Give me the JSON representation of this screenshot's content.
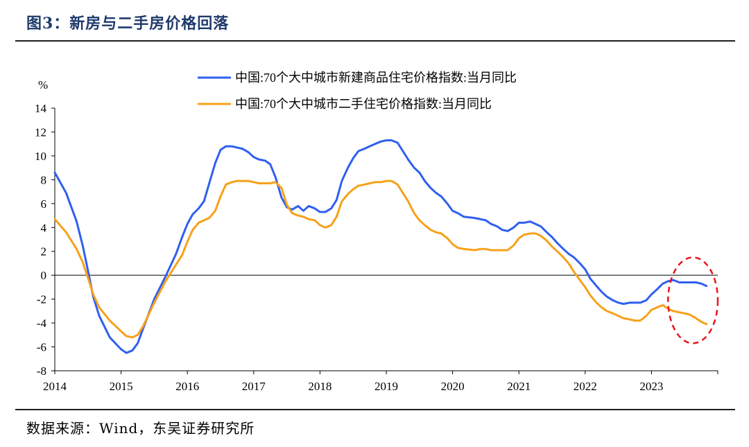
{
  "figure": {
    "title": "图3：新房与二手房价格回落",
    "source": "数据来源：Wind，东吴证券研究所"
  },
  "chart_data": {
    "type": "line",
    "ylabel": "%",
    "ylim": [
      -8,
      14
    ],
    "yticks": [
      14,
      12,
      10,
      8,
      6,
      4,
      2,
      0,
      -2,
      -4,
      -6,
      -8
    ],
    "xlim": [
      2014.0,
      2024.0
    ],
    "xticks": [
      "2014",
      "2015",
      "2016",
      "2017",
      "2018",
      "2019",
      "2020",
      "2021",
      "2022",
      "2023"
    ],
    "grid": false,
    "legend_position": "top-center",
    "highlight": {
      "shape": "dashed-ellipse",
      "color": "#e8141b",
      "x_range": [
        2023.25,
        2024.0
      ],
      "y_range": [
        -5.7,
        1.5
      ]
    },
    "series": [
      {
        "name": "中国:70个大中城市新建商品住宅价格指数:当月同比",
        "color": "#2f5ff0",
        "points": [
          [
            2014.0,
            8.6
          ],
          [
            2014.17,
            6.9
          ],
          [
            2014.33,
            4.5
          ],
          [
            2014.42,
            2.5
          ],
          [
            2014.5,
            0.4
          ],
          [
            2014.58,
            -1.8
          ],
          [
            2014.67,
            -3.4
          ],
          [
            2014.83,
            -5.2
          ],
          [
            2015.0,
            -6.2
          ],
          [
            2015.08,
            -6.5
          ],
          [
            2015.17,
            -6.3
          ],
          [
            2015.25,
            -5.7
          ],
          [
            2015.33,
            -4.5
          ],
          [
            2015.5,
            -2.0
          ],
          [
            2015.67,
            -0.1
          ],
          [
            2015.83,
            1.8
          ],
          [
            2015.92,
            3.2
          ],
          [
            2016.0,
            4.3
          ],
          [
            2016.08,
            5.1
          ],
          [
            2016.17,
            5.6
          ],
          [
            2016.25,
            6.2
          ],
          [
            2016.33,
            7.7
          ],
          [
            2016.42,
            9.4
          ],
          [
            2016.5,
            10.5
          ],
          [
            2016.58,
            10.8
          ],
          [
            2016.67,
            10.8
          ],
          [
            2016.75,
            10.7
          ],
          [
            2016.83,
            10.6
          ],
          [
            2016.92,
            10.3
          ],
          [
            2017.0,
            9.9
          ],
          [
            2017.08,
            9.7
          ],
          [
            2017.17,
            9.6
          ],
          [
            2017.25,
            9.3
          ],
          [
            2017.33,
            8.2
          ],
          [
            2017.42,
            6.5
          ],
          [
            2017.5,
            5.7
          ],
          [
            2017.58,
            5.5
          ],
          [
            2017.67,
            5.8
          ],
          [
            2017.75,
            5.4
          ],
          [
            2017.83,
            5.8
          ],
          [
            2017.92,
            5.6
          ],
          [
            2018.0,
            5.3
          ],
          [
            2018.08,
            5.3
          ],
          [
            2018.17,
            5.6
          ],
          [
            2018.25,
            6.3
          ],
          [
            2018.33,
            7.9
          ],
          [
            2018.42,
            9.0
          ],
          [
            2018.5,
            9.8
          ],
          [
            2018.58,
            10.4
          ],
          [
            2018.67,
            10.6
          ],
          [
            2018.75,
            10.8
          ],
          [
            2018.83,
            11.0
          ],
          [
            2018.92,
            11.2
          ],
          [
            2019.0,
            11.3
          ],
          [
            2019.08,
            11.3
          ],
          [
            2019.17,
            11.1
          ],
          [
            2019.25,
            10.4
          ],
          [
            2019.33,
            9.7
          ],
          [
            2019.42,
            9.0
          ],
          [
            2019.5,
            8.6
          ],
          [
            2019.58,
            7.9
          ],
          [
            2019.67,
            7.3
          ],
          [
            2019.75,
            6.9
          ],
          [
            2019.83,
            6.6
          ],
          [
            2019.92,
            6.0
          ],
          [
            2020.0,
            5.4
          ],
          [
            2020.08,
            5.2
          ],
          [
            2020.17,
            4.9
          ],
          [
            2020.33,
            4.8
          ],
          [
            2020.5,
            4.6
          ],
          [
            2020.58,
            4.3
          ],
          [
            2020.67,
            4.1
          ],
          [
            2020.75,
            3.8
          ],
          [
            2020.83,
            3.7
          ],
          [
            2020.92,
            4.0
          ],
          [
            2021.0,
            4.4
          ],
          [
            2021.08,
            4.4
          ],
          [
            2021.17,
            4.5
          ],
          [
            2021.25,
            4.3
          ],
          [
            2021.33,
            4.1
          ],
          [
            2021.42,
            3.6
          ],
          [
            2021.5,
            3.2
          ],
          [
            2021.58,
            2.7
          ],
          [
            2021.67,
            2.2
          ],
          [
            2021.75,
            1.8
          ],
          [
            2021.83,
            1.5
          ],
          [
            2021.92,
            1.0
          ],
          [
            2022.0,
            0.5
          ],
          [
            2022.08,
            -0.3
          ],
          [
            2022.17,
            -0.9
          ],
          [
            2022.25,
            -1.4
          ],
          [
            2022.33,
            -1.8
          ],
          [
            2022.42,
            -2.1
          ],
          [
            2022.5,
            -2.3
          ],
          [
            2022.58,
            -2.4
          ],
          [
            2022.67,
            -2.3
          ],
          [
            2022.75,
            -2.3
          ],
          [
            2022.83,
            -2.3
          ],
          [
            2022.92,
            -2.1
          ],
          [
            2023.0,
            -1.6
          ],
          [
            2023.08,
            -1.2
          ],
          [
            2023.17,
            -0.7
          ],
          [
            2023.25,
            -0.5
          ],
          [
            2023.33,
            -0.4
          ],
          [
            2023.42,
            -0.6
          ],
          [
            2023.5,
            -0.6
          ],
          [
            2023.58,
            -0.6
          ],
          [
            2023.67,
            -0.6
          ],
          [
            2023.75,
            -0.7
          ],
          [
            2023.83,
            -0.9
          ]
        ]
      },
      {
        "name": "中国:70个大中城市二手住宅价格指数:当月同比",
        "color": "#f6a119",
        "points": [
          [
            2014.0,
            4.7
          ],
          [
            2014.17,
            3.6
          ],
          [
            2014.33,
            2.2
          ],
          [
            2014.42,
            1.1
          ],
          [
            2014.5,
            -0.2
          ],
          [
            2014.58,
            -1.6
          ],
          [
            2014.67,
            -2.7
          ],
          [
            2014.83,
            -3.8
          ],
          [
            2015.0,
            -4.7
          ],
          [
            2015.08,
            -5.1
          ],
          [
            2015.17,
            -5.2
          ],
          [
            2015.25,
            -5.0
          ],
          [
            2015.33,
            -4.3
          ],
          [
            2015.5,
            -2.3
          ],
          [
            2015.67,
            -0.5
          ],
          [
            2015.83,
            0.9
          ],
          [
            2015.92,
            1.7
          ],
          [
            2016.0,
            2.8
          ],
          [
            2016.08,
            3.8
          ],
          [
            2016.17,
            4.4
          ],
          [
            2016.25,
            4.6
          ],
          [
            2016.33,
            4.8
          ],
          [
            2016.42,
            5.4
          ],
          [
            2016.5,
            6.6
          ],
          [
            2016.58,
            7.6
          ],
          [
            2016.67,
            7.8
          ],
          [
            2016.75,
            7.9
          ],
          [
            2016.83,
            7.9
          ],
          [
            2016.92,
            7.9
          ],
          [
            2017.0,
            7.8
          ],
          [
            2017.08,
            7.7
          ],
          [
            2017.17,
            7.7
          ],
          [
            2017.25,
            7.7
          ],
          [
            2017.33,
            7.8
          ],
          [
            2017.42,
            7.3
          ],
          [
            2017.5,
            5.9
          ],
          [
            2017.58,
            5.2
          ],
          [
            2017.67,
            5.0
          ],
          [
            2017.75,
            4.9
          ],
          [
            2017.83,
            4.7
          ],
          [
            2017.92,
            4.6
          ],
          [
            2018.0,
            4.2
          ],
          [
            2018.08,
            4.0
          ],
          [
            2018.17,
            4.2
          ],
          [
            2018.25,
            4.9
          ],
          [
            2018.33,
            6.2
          ],
          [
            2018.42,
            6.8
          ],
          [
            2018.5,
            7.2
          ],
          [
            2018.58,
            7.5
          ],
          [
            2018.67,
            7.6
          ],
          [
            2018.75,
            7.7
          ],
          [
            2018.83,
            7.8
          ],
          [
            2018.92,
            7.8
          ],
          [
            2019.0,
            7.9
          ],
          [
            2019.08,
            7.9
          ],
          [
            2019.17,
            7.6
          ],
          [
            2019.25,
            6.9
          ],
          [
            2019.33,
            6.2
          ],
          [
            2019.42,
            5.2
          ],
          [
            2019.5,
            4.6
          ],
          [
            2019.58,
            4.2
          ],
          [
            2019.67,
            3.8
          ],
          [
            2019.75,
            3.6
          ],
          [
            2019.83,
            3.5
          ],
          [
            2019.92,
            3.1
          ],
          [
            2020.0,
            2.6
          ],
          [
            2020.08,
            2.3
          ],
          [
            2020.17,
            2.2
          ],
          [
            2020.33,
            2.1
          ],
          [
            2020.42,
            2.2
          ],
          [
            2020.5,
            2.2
          ],
          [
            2020.58,
            2.1
          ],
          [
            2020.67,
            2.1
          ],
          [
            2020.75,
            2.1
          ],
          [
            2020.83,
            2.1
          ],
          [
            2020.92,
            2.5
          ],
          [
            2021.0,
            3.1
          ],
          [
            2021.08,
            3.4
          ],
          [
            2021.17,
            3.5
          ],
          [
            2021.25,
            3.5
          ],
          [
            2021.33,
            3.3
          ],
          [
            2021.42,
            2.9
          ],
          [
            2021.5,
            2.4
          ],
          [
            2021.58,
            2.0
          ],
          [
            2021.67,
            1.5
          ],
          [
            2021.75,
            1.0
          ],
          [
            2021.83,
            0.3
          ],
          [
            2021.92,
            -0.4
          ],
          [
            2022.0,
            -1.0
          ],
          [
            2022.08,
            -1.7
          ],
          [
            2022.17,
            -2.3
          ],
          [
            2022.25,
            -2.7
          ],
          [
            2022.33,
            -3.0
          ],
          [
            2022.42,
            -3.2
          ],
          [
            2022.5,
            -3.4
          ],
          [
            2022.58,
            -3.6
          ],
          [
            2022.67,
            -3.7
          ],
          [
            2022.75,
            -3.8
          ],
          [
            2022.83,
            -3.8
          ],
          [
            2022.92,
            -3.4
          ],
          [
            2023.0,
            -2.9
          ],
          [
            2023.08,
            -2.7
          ],
          [
            2023.17,
            -2.5
          ],
          [
            2023.25,
            -2.8
          ],
          [
            2023.33,
            -3.0
          ],
          [
            2023.42,
            -3.1
          ],
          [
            2023.5,
            -3.2
          ],
          [
            2023.58,
            -3.3
          ],
          [
            2023.67,
            -3.6
          ],
          [
            2023.75,
            -3.9
          ],
          [
            2023.83,
            -4.1
          ]
        ]
      }
    ]
  }
}
